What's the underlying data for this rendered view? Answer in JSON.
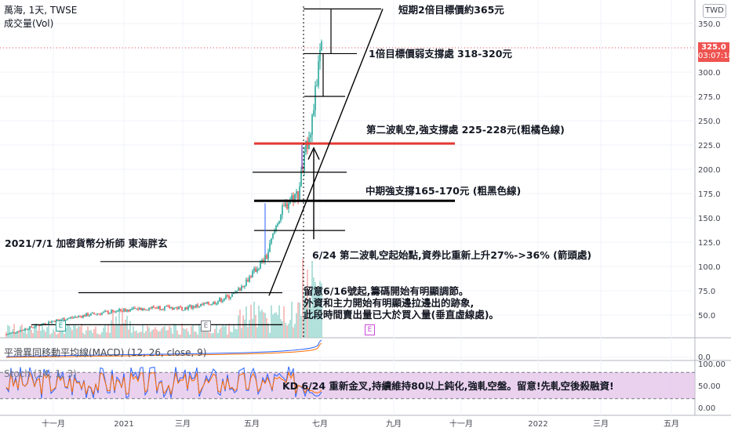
{
  "header": {
    "symbol_line": "萬海, 1天, TWSE",
    "volume_label": "成交量(Vol)",
    "currency_button": "TWD"
  },
  "price_tag": {
    "value": "325.0",
    "countdown": "03:07:18",
    "color": "#ef5350"
  },
  "panes": {
    "macd_label": "平滑異同移動平均線(MACD) (12, 26, close, 9)",
    "stoch_label": "Stoch (14, 1, 3)"
  },
  "annotations": {
    "target_365": "短期2倍目標價約365元",
    "support_318": "1倍目標價弱支撐處 318-320元",
    "support_225": "第二波軋空,強支撐處 225-228元(粗橘色線)",
    "support_165": "中期強支撐165-170元 (粗黑色線)",
    "analyst": "2021/7/1 加密貨幣分析師 東海胖玄",
    "squeeze_start": "6/24 第二波軋空起始點,資券比重新上升27%->36% (箭頭處)",
    "note_line1": "留意6/16號起,籌碼開始有明顯調節。",
    "note_line2": "外資和主力開始有明顯邊拉邊出的跡象,",
    "note_line3": "此段時間賣出量已大於買入量(垂直虛線處)。",
    "kd_note": "KD 6/24 重新金叉,持續維持80以上鈍化,強軋空盤。留意!先軋空後殺融資!"
  },
  "events": {
    "earnings": "E",
    "earnings_colors": [
      "#26a69a",
      "#787b86",
      "#c94cd6"
    ]
  },
  "colors": {
    "up": "#26a69a",
    "down": "#ef5350",
    "orange_line": "#e53935",
    "black_line": "#000000",
    "stoch_band": "#e1bee7"
  },
  "chart_data": [
    {
      "type": "line",
      "title": "萬海, 1天, TWSE",
      "x_ticks": [
        "十一月",
        "2021",
        "三月",
        "五月",
        "七月",
        "九月",
        "十一月",
        "2022",
        "三月",
        "五月"
      ],
      "y_ticks": [
        50,
        75,
        100,
        125,
        150,
        175,
        200,
        225,
        250,
        275,
        300,
        325,
        350
      ],
      "ylim": [
        25,
        360
      ],
      "series": [
        {
          "values_monthly_approx": [
            {
              "x": "2020-09",
              "close": 30
            },
            {
              "x": "2020-10",
              "close": 40
            },
            {
              "x": "2020-11",
              "close": 48
            },
            {
              "x": "2020-12",
              "close": 55
            },
            {
              "x": "2021-01",
              "close": 58
            },
            {
              "x": "2021-02",
              "close": 55
            },
            {
              "x": "2021-03",
              "close": 62
            },
            {
              "x": "2021-04",
              "close": 85
            },
            {
              "x": "2021-05",
              "close": 95
            },
            {
              "x": "2021-06-10",
              "close": 165
            },
            {
              "x": "2021-06-24",
              "close": 230
            },
            {
              "x": "2021-07-01",
              "close": 325
            }
          ]
        }
      ],
      "horizontal_levels": [
        {
          "value": 365,
          "label": "短期2倍目標價約365元"
        },
        {
          "value": 319,
          "label": "1倍目標價弱支撐處 318-320元"
        },
        {
          "value": 226.5,
          "label": "第二波軋空,強支撐處 225-228元(粗橘色線)",
          "color": "orange"
        },
        {
          "value": 167.5,
          "label": "中期強支撐165-170元 (粗黑色線)",
          "color": "black"
        }
      ],
      "last_price": 325.0
    },
    {
      "type": "line",
      "title": "平滑異同移動平均線(MACD) (12, 26, close, 9)",
      "y_ticks": [
        0
      ]
    },
    {
      "type": "line",
      "title": "Stoch (14, 1, 3)",
      "y_ticks": [
        0,
        50,
        100
      ],
      "band": [
        20,
        80
      ]
    }
  ]
}
